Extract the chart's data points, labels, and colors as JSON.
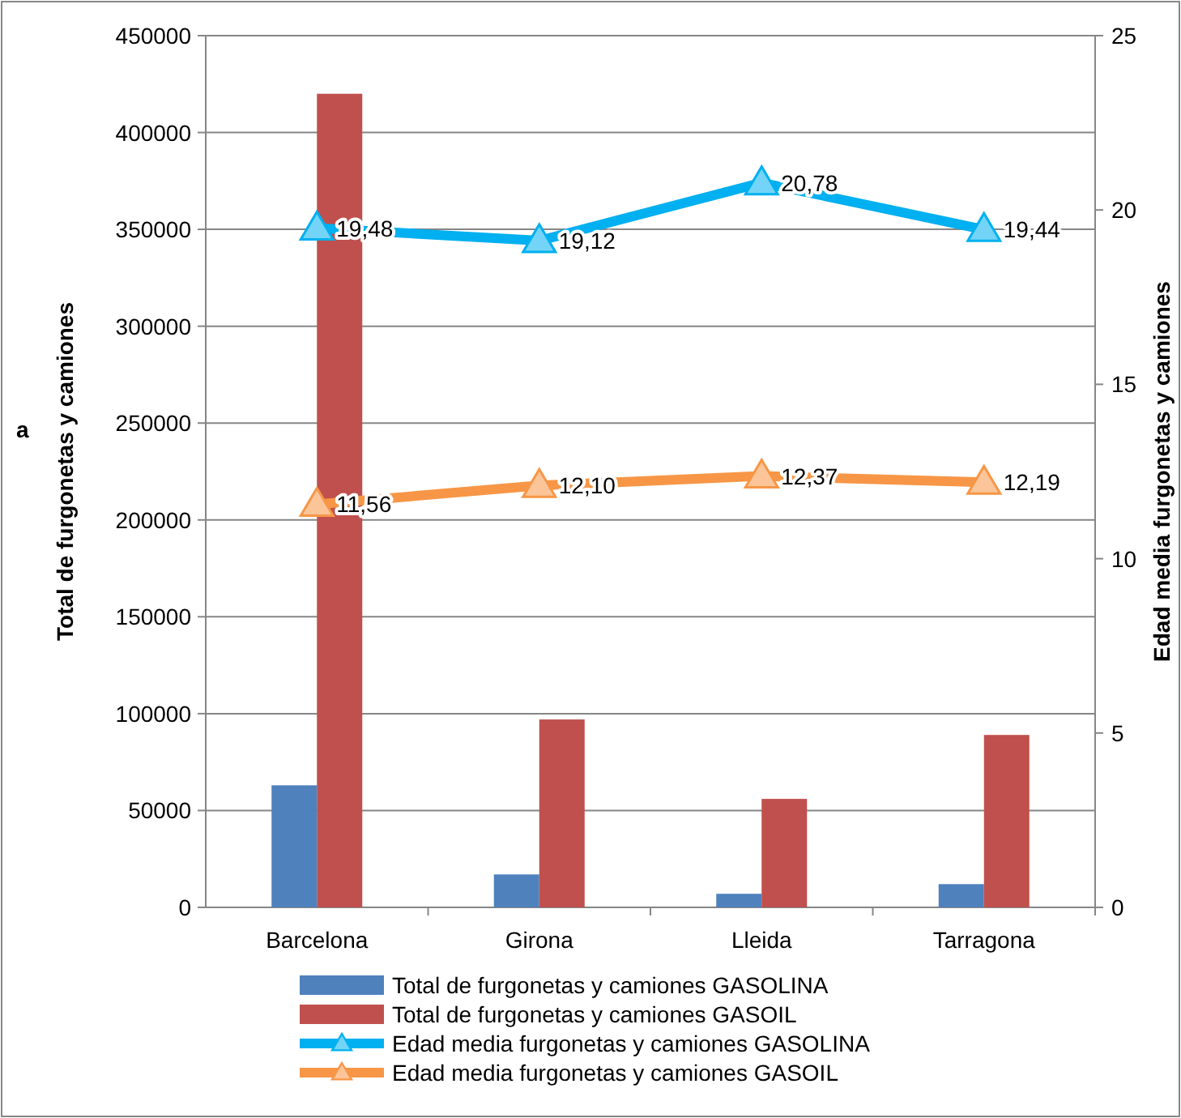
{
  "chart_data": {
    "type": "bar",
    "ylabel": "Total de furgonetas y camiones",
    "y2label": "Edad media furgonetas y camiones",
    "annotations": [
      "a"
    ],
    "categories": [
      "Barcelona",
      "Girona",
      "Lleida",
      "Tarragona"
    ],
    "series": [
      {
        "name": "Total de furgonetas y camiones GASOLINA",
        "color": "#4f81bd",
        "values": [
          63000,
          17000,
          7000,
          12000
        ]
      },
      {
        "name": "Total de furgonetas y camiones GASOIL",
        "color": "#c0504d",
        "values": [
          420000,
          97000,
          56000,
          89000
        ]
      },
      {
        "name": "Edad media furgonetas y camiones GASOLINA",
        "type": "line",
        "axis": "y2",
        "color": "#00b0f0",
        "values": [
          19.48,
          19.12,
          20.78,
          19.44
        ],
        "value_labels": [
          "19,48",
          "19,12",
          "20,78",
          "19,44"
        ]
      },
      {
        "name": "Edad media furgonetas y camiones GASOIL",
        "type": "line",
        "axis": "y2",
        "color": "#f79646",
        "values": [
          11.56,
          12.1,
          12.37,
          12.19
        ],
        "value_labels": [
          "11,56",
          "12,10",
          "12,37",
          "12,19"
        ]
      }
    ],
    "ylim": [
      0,
      450000
    ],
    "yticks": [
      0,
      50000,
      100000,
      150000,
      200000,
      250000,
      300000,
      350000,
      400000,
      450000
    ],
    "y2lim": [
      0,
      25
    ],
    "y2ticks": [
      0,
      5,
      10,
      15,
      20,
      25
    ],
    "grid": "y",
    "legend": "bottom",
    "marker": "triangle"
  }
}
